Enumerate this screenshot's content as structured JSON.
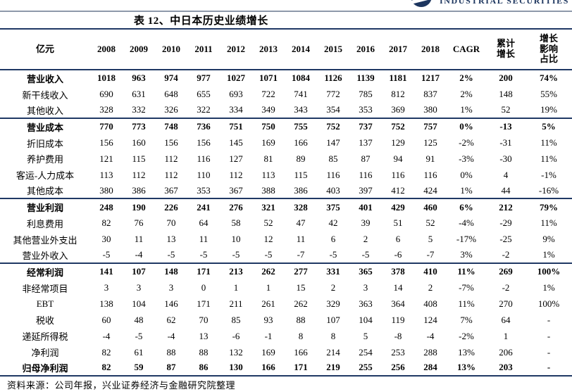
{
  "logo": {
    "text": "INDUSTRIAL SECURITIES"
  },
  "title": "表 12、中日本历史业绩增长",
  "source": "资料来源：公司年报，兴业证券经济与金融研究院整理",
  "colors": {
    "border_navy": "#1F3864",
    "rule_gray": "#8E99AA",
    "logo_navy": "#1C355E"
  },
  "table": {
    "header": {
      "unit": "亿元",
      "years": [
        "2008",
        "2009",
        "2010",
        "2011",
        "2012",
        "2013",
        "2014",
        "2015",
        "2016",
        "2017",
        "2018"
      ],
      "cagr": "CAGR",
      "cumulative": "累计\n增长",
      "impact": "增长\n影响\n占比"
    },
    "rows": [
      {
        "label": "营业收入",
        "bold": true,
        "sep": false,
        "values": [
          "1018",
          "963",
          "974",
          "977",
          "1027",
          "1071",
          "1084",
          "1126",
          "1139",
          "1181",
          "1217",
          "2%",
          "200",
          "74%"
        ]
      },
      {
        "label": "新干线收入",
        "bold": false,
        "sep": false,
        "values": [
          "690",
          "631",
          "648",
          "655",
          "693",
          "722",
          "741",
          "772",
          "785",
          "812",
          "837",
          "2%",
          "148",
          "55%"
        ]
      },
      {
        "label": "其他收入",
        "bold": false,
        "sep": true,
        "values": [
          "328",
          "332",
          "326",
          "322",
          "334",
          "349",
          "343",
          "354",
          "353",
          "369",
          "380",
          "1%",
          "52",
          "19%"
        ]
      },
      {
        "label": "营业成本",
        "bold": true,
        "sep": false,
        "values": [
          "770",
          "773",
          "748",
          "736",
          "751",
          "750",
          "755",
          "752",
          "737",
          "752",
          "757",
          "0%",
          "-13",
          "5%"
        ]
      },
      {
        "label": "折旧成本",
        "bold": false,
        "sep": false,
        "values": [
          "156",
          "160",
          "156",
          "156",
          "145",
          "169",
          "166",
          "147",
          "137",
          "129",
          "125",
          "-2%",
          "-31",
          "11%"
        ]
      },
      {
        "label": "养护费用",
        "bold": false,
        "sep": false,
        "values": [
          "121",
          "115",
          "112",
          "116",
          "127",
          "81",
          "89",
          "85",
          "87",
          "94",
          "91",
          "-3%",
          "-30",
          "11%"
        ]
      },
      {
        "label": "客运-人力成本",
        "bold": false,
        "sep": false,
        "values": [
          "113",
          "112",
          "112",
          "110",
          "112",
          "113",
          "115",
          "116",
          "116",
          "116",
          "116",
          "0%",
          "4",
          "-1%"
        ]
      },
      {
        "label": "其他成本",
        "bold": false,
        "sep": true,
        "values": [
          "380",
          "386",
          "367",
          "353",
          "367",
          "388",
          "386",
          "403",
          "397",
          "412",
          "424",
          "1%",
          "44",
          "-16%"
        ]
      },
      {
        "label": "营业利润",
        "bold": true,
        "sep": false,
        "values": [
          "248",
          "190",
          "226",
          "241",
          "276",
          "321",
          "328",
          "375",
          "401",
          "429",
          "460",
          "6%",
          "212",
          "79%"
        ]
      },
      {
        "label": "利息费用",
        "bold": false,
        "sep": false,
        "values": [
          "82",
          "76",
          "70",
          "64",
          "58",
          "52",
          "47",
          "42",
          "39",
          "51",
          "52",
          "-4%",
          "-29",
          "11%"
        ]
      },
      {
        "label": "其他营业外支出",
        "bold": false,
        "sep": false,
        "values": [
          "30",
          "11",
          "13",
          "11",
          "10",
          "12",
          "11",
          "6",
          "2",
          "6",
          "5",
          "-17%",
          "-25",
          "9%"
        ]
      },
      {
        "label": "营业外收入",
        "bold": false,
        "sep": true,
        "values": [
          "-5",
          "-4",
          "-5",
          "-5",
          "-5",
          "-5",
          "-7",
          "-5",
          "-5",
          "-6",
          "-7",
          "3%",
          "-2",
          "1%"
        ]
      },
      {
        "label": "经常利润",
        "bold": true,
        "sep": false,
        "values": [
          "141",
          "107",
          "148",
          "171",
          "213",
          "262",
          "277",
          "331",
          "365",
          "378",
          "410",
          "11%",
          "269",
          "100%"
        ]
      },
      {
        "label": "非经常项目",
        "bold": false,
        "sep": false,
        "values": [
          "3",
          "3",
          "3",
          "0",
          "1",
          "1",
          "15",
          "2",
          "3",
          "14",
          "2",
          "-7%",
          "-2",
          "1%"
        ]
      },
      {
        "label": "EBT",
        "bold": false,
        "sep": false,
        "values": [
          "138",
          "104",
          "146",
          "171",
          "211",
          "261",
          "262",
          "329",
          "363",
          "364",
          "408",
          "11%",
          "270",
          "100%"
        ]
      },
      {
        "label": "税收",
        "bold": false,
        "sep": false,
        "values": [
          "60",
          "48",
          "62",
          "70",
          "85",
          "93",
          "88",
          "107",
          "104",
          "119",
          "124",
          "7%",
          "64",
          "-"
        ]
      },
      {
        "label": "递延所得税",
        "bold": false,
        "sep": false,
        "values": [
          "-4",
          "-5",
          "-4",
          "13",
          "-6",
          "-1",
          "8",
          "8",
          "5",
          "-8",
          "-4",
          "-2%",
          "1",
          "-"
        ]
      },
      {
        "label": "净利润",
        "bold": false,
        "sep": false,
        "values": [
          "82",
          "61",
          "88",
          "88",
          "132",
          "169",
          "166",
          "214",
          "254",
          "253",
          "288",
          "13%",
          "206",
          "-"
        ]
      },
      {
        "label": "归母净利润",
        "bold": true,
        "sep": true,
        "values": [
          "82",
          "59",
          "87",
          "86",
          "130",
          "166",
          "171",
          "219",
          "255",
          "256",
          "284",
          "13%",
          "203",
          "-"
        ]
      }
    ]
  }
}
